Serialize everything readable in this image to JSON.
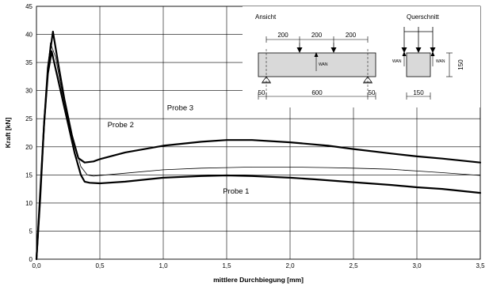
{
  "chart_data": {
    "type": "line",
    "xlabel": "mittlere Durchbiegung [mm]",
    "ylabel": "Kraft [kN]",
    "xlim": [
      0,
      3.5
    ],
    "ylim": [
      0,
      45
    ],
    "xticks": [
      0,
      0.5,
      1,
      1.5,
      2,
      2.5,
      3,
      3.5
    ],
    "xtick_labels": [
      "0,0",
      "0,5",
      "1,0",
      "1,5",
      "2,0",
      "2,5",
      "3,0",
      "3,5"
    ],
    "yticks": [
      0,
      5,
      10,
      15,
      20,
      25,
      30,
      35,
      40,
      45
    ],
    "ytick_labels": [
      "0",
      "5",
      "10",
      "15",
      "20",
      "25",
      "30",
      "35",
      "40",
      "45"
    ],
    "grid": true,
    "legend": "none",
    "series": [
      {
        "name": "Probe 1",
        "stroke_width": 2.2,
        "x": [
          0,
          0.03,
          0.06,
          0.09,
          0.12,
          0.15,
          0.2,
          0.25,
          0.3,
          0.35,
          0.38,
          0.42,
          0.5,
          0.7,
          1.0,
          1.3,
          1.5,
          1.7,
          2.0,
          2.2,
          2.5,
          2.8,
          3.0,
          3.2,
          3.5
        ],
        "y": [
          0,
          12,
          24,
          33,
          37,
          34,
          29,
          24,
          19,
          15,
          13.8,
          13.6,
          13.5,
          13.8,
          14.5,
          14.8,
          14.9,
          14.8,
          14.5,
          14.2,
          13.7,
          13.2,
          12.8,
          12.5,
          11.8
        ]
      },
      {
        "name": "Probe 2",
        "stroke_width": 0.8,
        "x": [
          0,
          0.03,
          0.06,
          0.09,
          0.11,
          0.15,
          0.2,
          0.25,
          0.3,
          0.35,
          0.4,
          0.45,
          0.5,
          0.7,
          1.0,
          1.3,
          1.5,
          1.7,
          2.0,
          2.3,
          2.5,
          2.8,
          3.0,
          3.2,
          3.5
        ],
        "y": [
          0,
          12,
          25,
          34,
          38.5,
          36,
          30,
          25,
          20.5,
          16.5,
          15,
          14.8,
          14.9,
          15.3,
          15.9,
          16.2,
          16.3,
          16.4,
          16.4,
          16.3,
          16.2,
          16,
          15.7,
          15.4,
          14.9
        ]
      },
      {
        "name": "Probe 3",
        "stroke_width": 2.2,
        "x": [
          0,
          0.03,
          0.06,
          0.09,
          0.13,
          0.17,
          0.22,
          0.28,
          0.33,
          0.38,
          0.45,
          0.5,
          0.7,
          1.0,
          1.3,
          1.5,
          1.7,
          2.0,
          2.3,
          2.5,
          2.8,
          3.0,
          3.2,
          3.5
        ],
        "y": [
          0,
          11,
          24,
          34,
          40.5,
          35,
          28.5,
          22,
          18,
          17.2,
          17.4,
          17.8,
          19,
          20.2,
          20.9,
          21.2,
          21.2,
          20.8,
          20.2,
          19.6,
          18.8,
          18.3,
          17.9,
          17.2
        ]
      }
    ],
    "annotations": [
      {
        "text": "Probe 1",
        "x": 1.47,
        "y": 11.7
      },
      {
        "text": "Probe 2",
        "x": 0.56,
        "y": 23.5
      },
      {
        "text": "Probe 3",
        "x": 1.03,
        "y": 26.5
      }
    ]
  },
  "sketch": {
    "ansicht_title": "Ansicht",
    "querschnitt_title": "Querschnitt",
    "top_dims": [
      "200",
      "200",
      "200"
    ],
    "bottom_dims": [
      "50",
      "600",
      "50"
    ],
    "wan_label": "WAN",
    "height_dim": "150",
    "width_dim": "150"
  }
}
